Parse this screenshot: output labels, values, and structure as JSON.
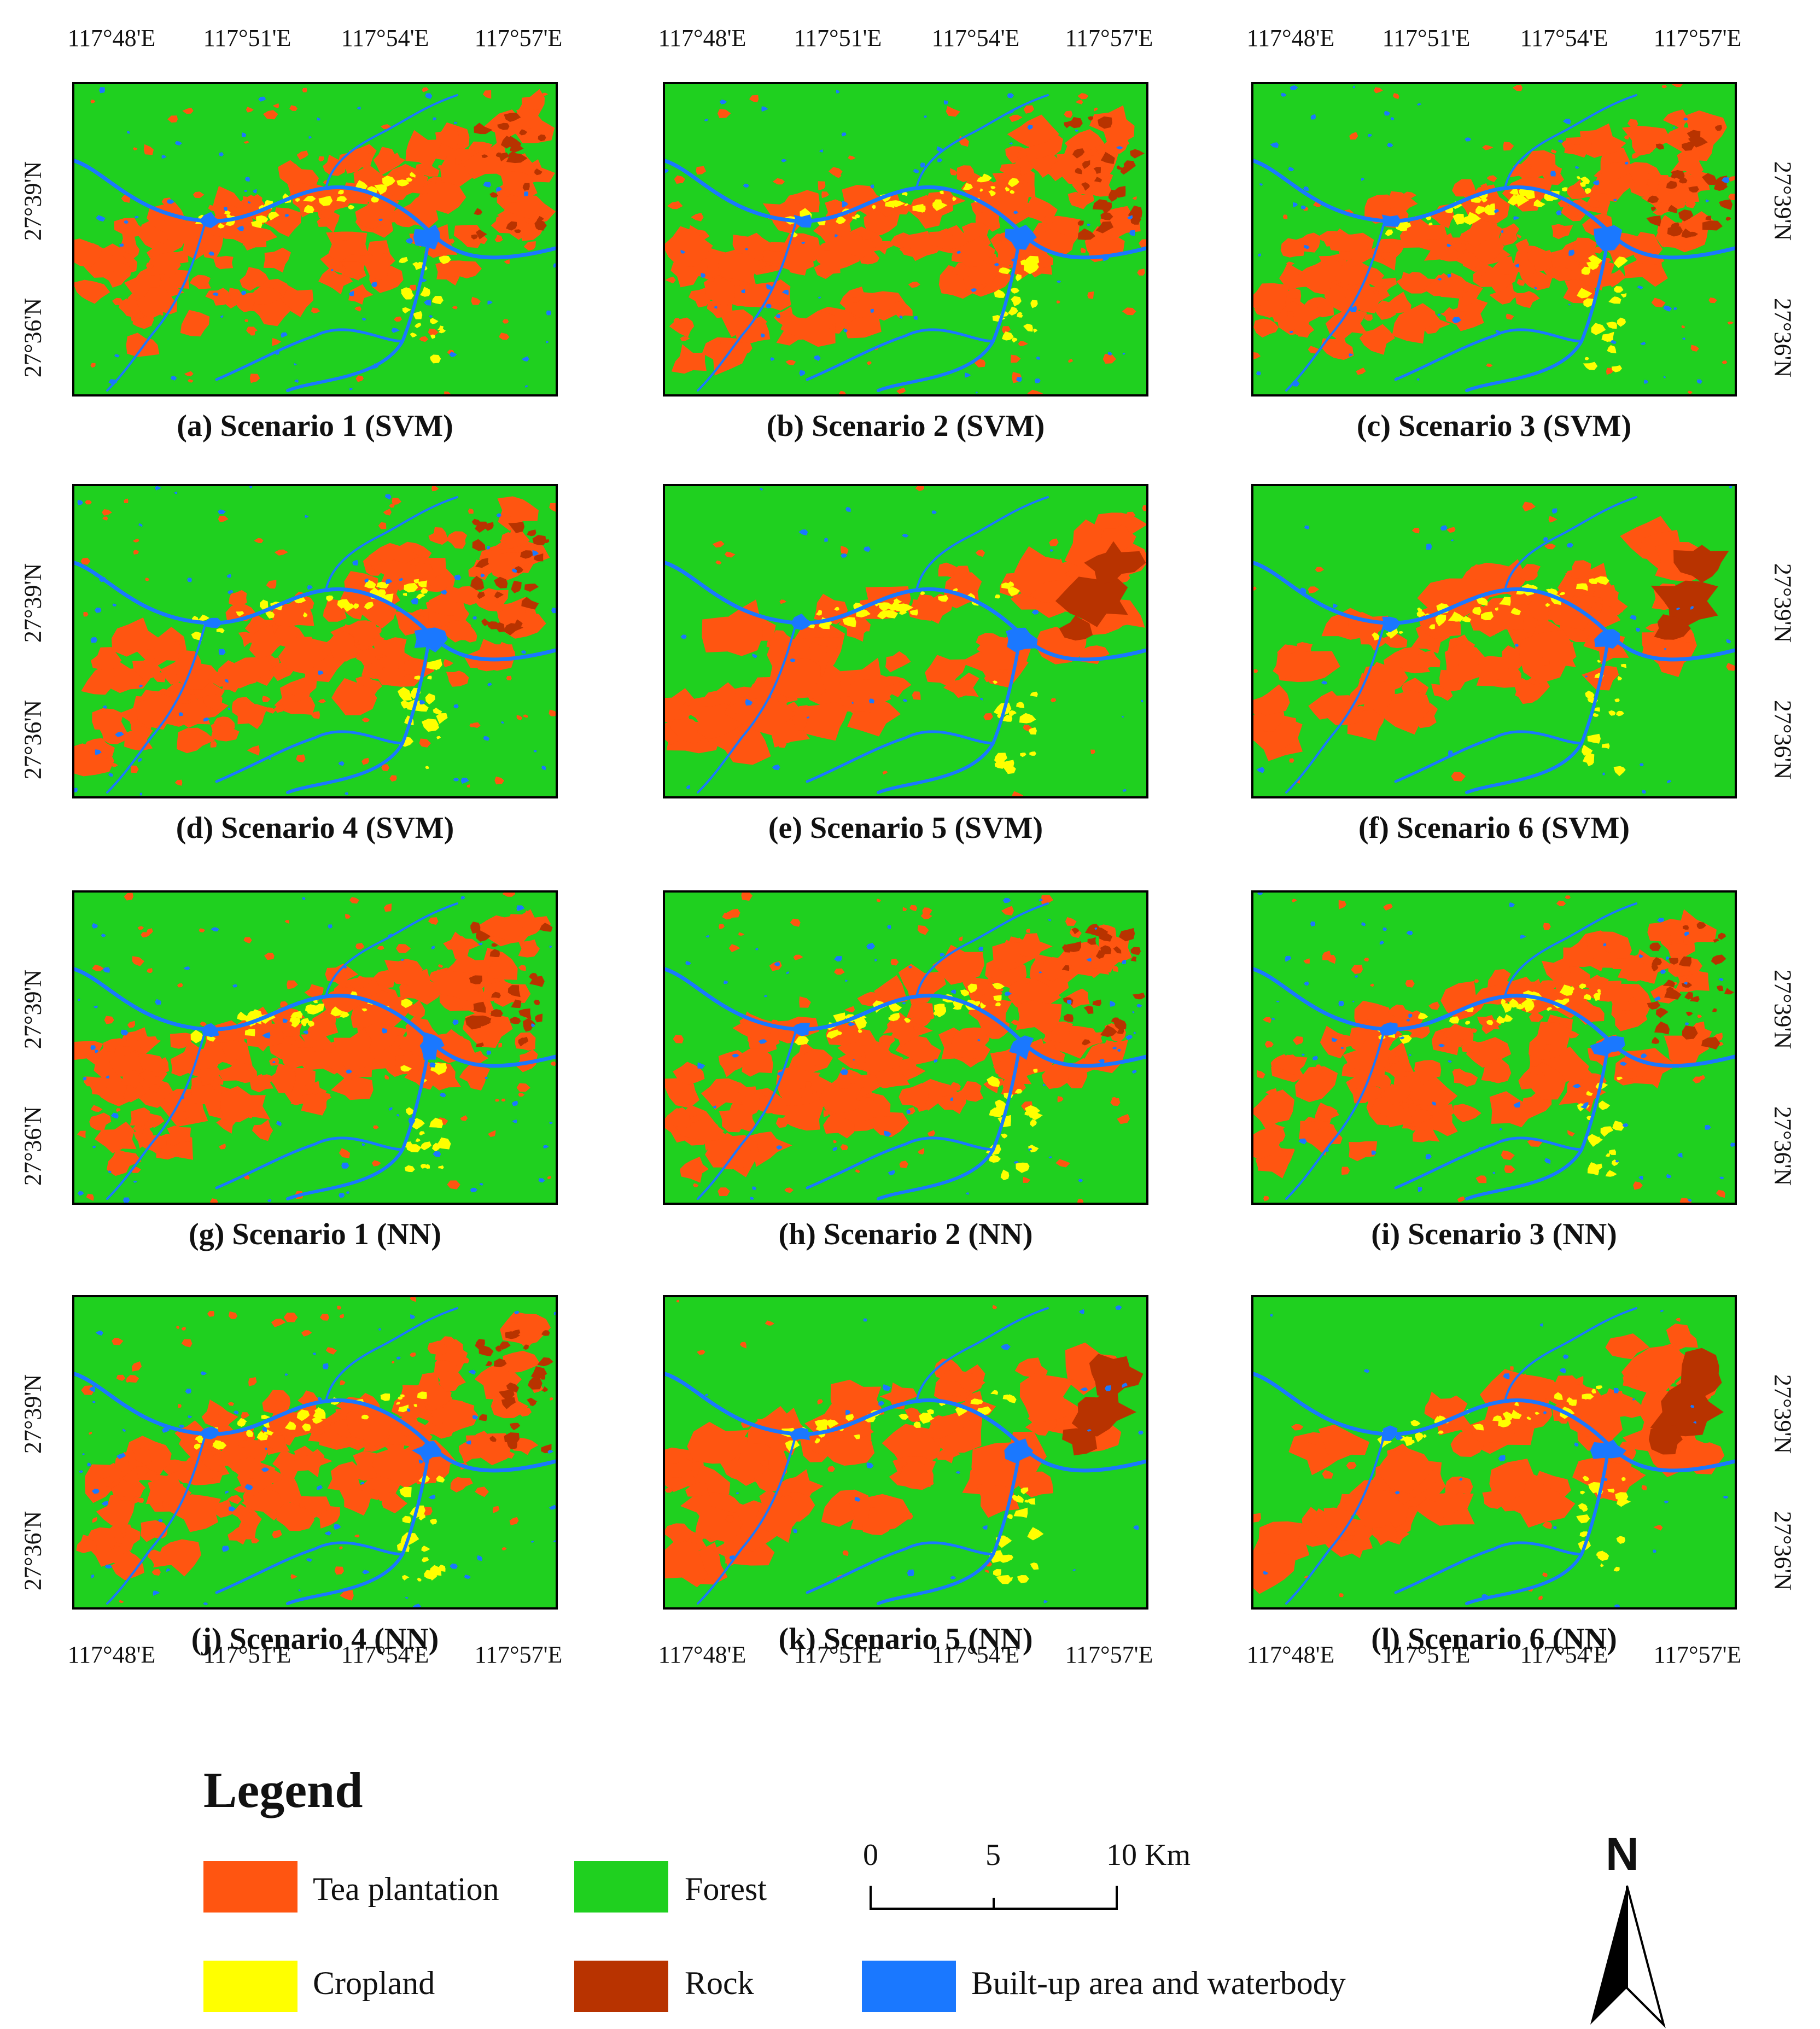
{
  "longitude_ticks": [
    "117°48'E",
    "117°51'E",
    "117°54'E",
    "117°57'E"
  ],
  "latitude_ticks": [
    "27°39'N",
    "27°36'N"
  ],
  "panels": [
    {
      "caption": "(a) Scenario 1 (SVM)",
      "classifier": "SVM",
      "scenario": 1
    },
    {
      "caption": "(b) Scenario 2 (SVM)",
      "classifier": "SVM",
      "scenario": 2
    },
    {
      "caption": "(c) Scenario 3 (SVM)",
      "classifier": "SVM",
      "scenario": 3
    },
    {
      "caption": "(d) Scenario 4 (SVM)",
      "classifier": "SVM",
      "scenario": 4
    },
    {
      "caption": "(e) Scenario 5 (SVM)",
      "classifier": "SVM",
      "scenario": 5
    },
    {
      "caption": "(f) Scenario 6 (SVM)",
      "classifier": "SVM",
      "scenario": 6
    },
    {
      "caption": "(g) Scenario 1 (NN)",
      "classifier": "NN",
      "scenario": 1
    },
    {
      "caption": "(h) Scenario 2 (NN)",
      "classifier": "NN",
      "scenario": 2
    },
    {
      "caption": "(i) Scenario 3 (NN)",
      "classifier": "NN",
      "scenario": 3
    },
    {
      "caption": "(j) Scenario 4 (NN)",
      "classifier": "NN",
      "scenario": 4
    },
    {
      "caption": "(k) Scenario 5 (NN)",
      "classifier": "NN",
      "scenario": 5
    },
    {
      "caption": "(l) Scenario 6 (NN)",
      "classifier": "NN",
      "scenario": 6
    }
  ],
  "legend": {
    "title": "Legend",
    "items": [
      {
        "label": "Tea plantation",
        "color": "#ff5511"
      },
      {
        "label": "Forest",
        "color": "#1fd01f"
      },
      {
        "label": "Cropland",
        "color": "#ffff00"
      },
      {
        "label": "Rock",
        "color": "#b83300"
      },
      {
        "label": "Built-up area and waterbody",
        "color": "#1a78ff"
      }
    ]
  },
  "scale_bar": {
    "labels": [
      "0",
      "5",
      "10 Km"
    ]
  },
  "north_arrow": {
    "label": "N"
  }
}
